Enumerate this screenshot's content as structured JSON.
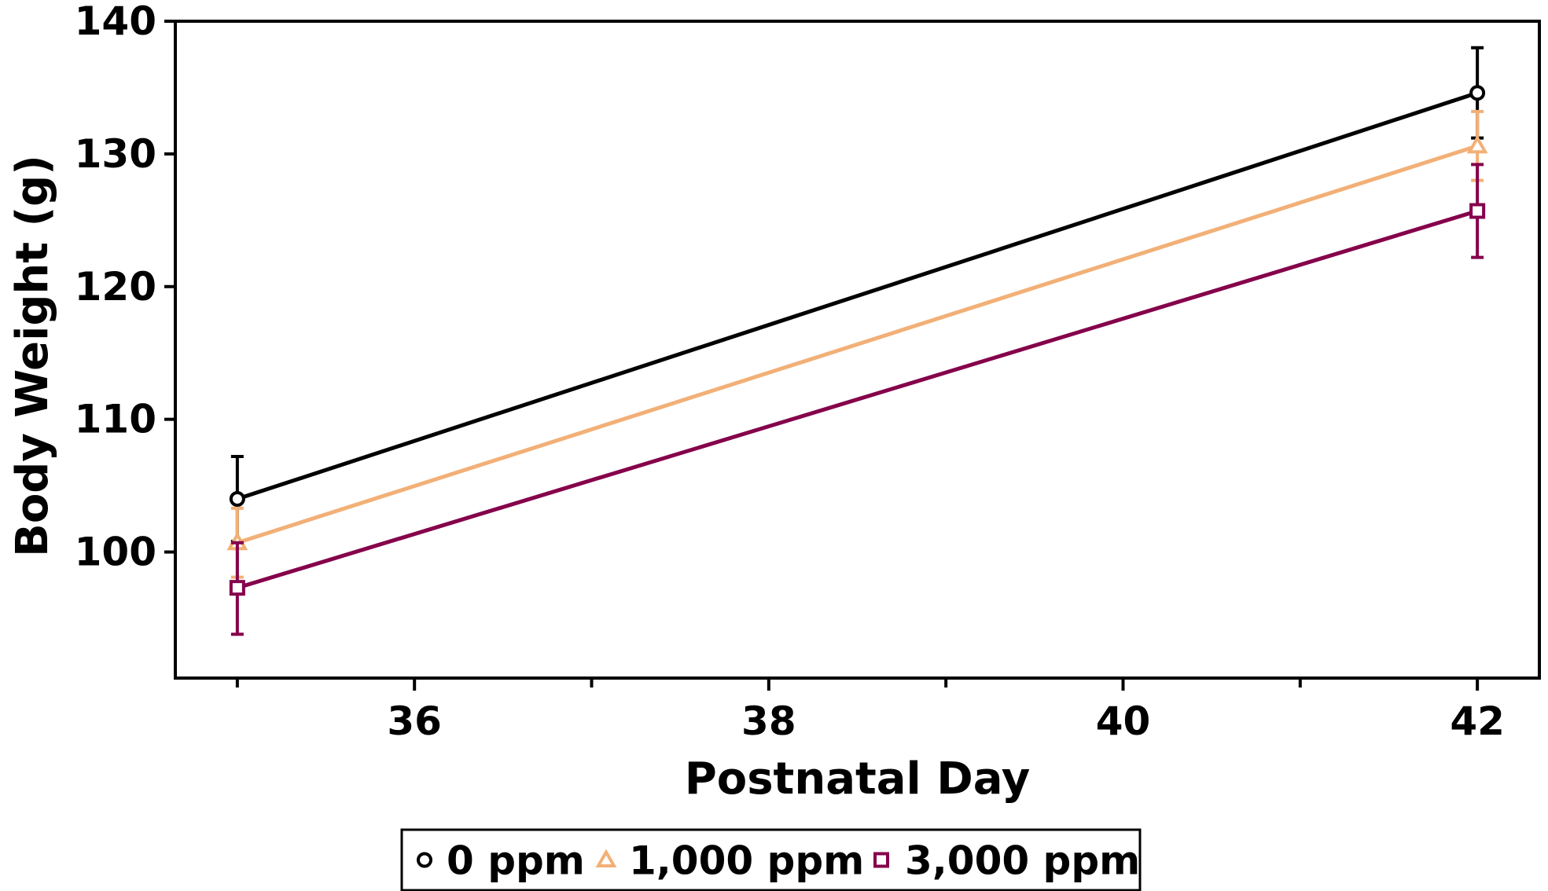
{
  "chart_data": {
    "type": "line",
    "title": "",
    "xlabel": "Postnatal Day",
    "ylabel": "Body Weight (g)",
    "xlim": [
      34.65,
      42.35
    ],
    "ylim": [
      90.5,
      140.0
    ],
    "x_major_ticks": [
      36,
      38,
      40,
      42
    ],
    "x_minor_ticks": [
      35,
      37,
      39,
      41
    ],
    "x_tick_labels": [
      "36",
      "38",
      "40",
      "42"
    ],
    "y_ticks": [
      100,
      110,
      120,
      130,
      140
    ],
    "y_tick_labels": [
      "100",
      "110",
      "120",
      "130",
      "140"
    ],
    "grid": false,
    "legend_placement": "bottom-center",
    "series": [
      {
        "name": "0 ppm",
        "color": "#000000",
        "marker": "circle",
        "x": [
          35,
          42
        ],
        "y": [
          104.0,
          134.6
        ],
        "err_upper": [
          107.2,
          138.0
        ],
        "err_lower": [
          100.8,
          131.2
        ]
      },
      {
        "name": "1,000 ppm",
        "color": "#f2b077",
        "marker": "triangle",
        "x": [
          35,
          42
        ],
        "y": [
          100.7,
          130.6
        ],
        "err_upper": [
          103.3,
          133.2
        ],
        "err_lower": [
          98.1,
          128.0
        ]
      },
      {
        "name": "3,000 ppm",
        "color": "#85004b",
        "marker": "square",
        "x": [
          35,
          42
        ],
        "y": [
          97.3,
          125.7
        ],
        "err_upper": [
          100.7,
          129.2
        ],
        "err_lower": [
          93.8,
          122.2
        ]
      }
    ]
  }
}
